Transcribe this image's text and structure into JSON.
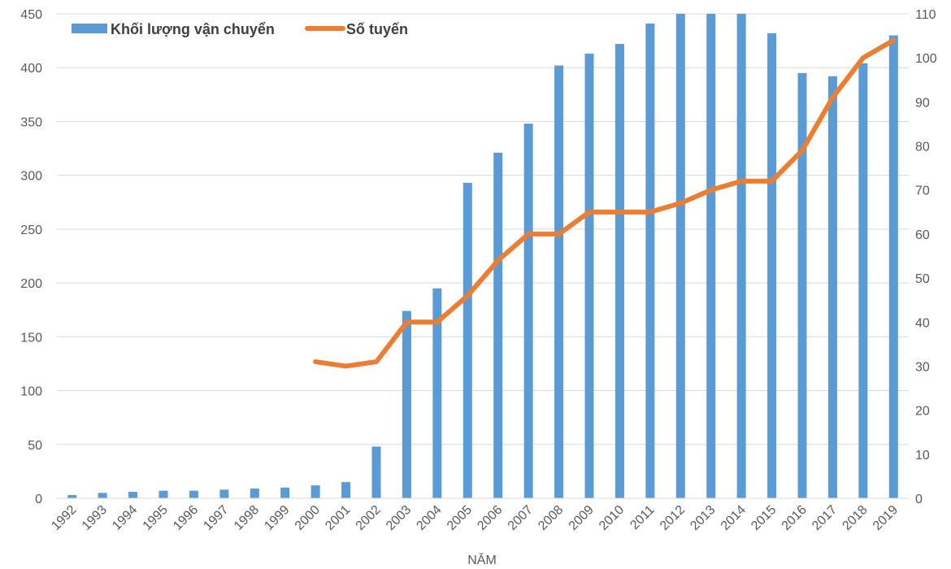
{
  "chart_data": {
    "type": "bar",
    "categories": [
      "1992",
      "1993",
      "1994",
      "1995",
      "1996",
      "1997",
      "1998",
      "1999",
      "2000",
      "2001",
      "2002",
      "2003",
      "2004",
      "2005",
      "2006",
      "2007",
      "2008",
      "2009",
      "2010",
      "2011",
      "2012",
      "2013",
      "2014",
      "2015",
      "2016",
      "2017",
      "2018",
      "2019"
    ],
    "series": [
      {
        "name": "Khối lượng vận chuyển",
        "type": "bar",
        "axis": "left",
        "color": "#5B9BD5",
        "values": [
          3,
          5,
          6,
          7,
          7,
          8,
          9,
          10,
          12,
          15,
          48,
          174,
          195,
          293,
          321,
          348,
          402,
          413,
          422,
          441,
          455,
          455,
          455,
          432,
          395,
          392,
          404,
          430
        ]
      },
      {
        "name": "Số tuyến",
        "type": "line",
        "axis": "right",
        "color": "#ED7D31",
        "x": [
          "2000",
          "2001",
          "2002",
          "2003",
          "2004",
          "2005",
          "2006",
          "2007",
          "2008",
          "2009",
          "2010",
          "2011",
          "2012",
          "2013",
          "2014",
          "2015",
          "2016",
          "2017",
          "2018",
          "2019"
        ],
        "values": [
          31,
          30,
          31,
          40,
          40,
          46,
          54,
          60,
          60,
          65,
          65,
          65,
          67,
          70,
          72,
          72,
          79,
          91,
          100,
          104
        ]
      }
    ],
    "xlabel": "NĂM",
    "ylim": [
      0,
      450
    ],
    "y2lim": [
      0,
      110
    ],
    "yticks": [
      "0",
      "50",
      "100",
      "150",
      "200",
      "250",
      "300",
      "350",
      "400",
      "450"
    ],
    "y2ticks": [
      "0",
      "10",
      "20",
      "30",
      "40",
      "50",
      "60",
      "70",
      "80",
      "90",
      "100",
      "110"
    ],
    "grid": true,
    "legend": "top-left"
  }
}
